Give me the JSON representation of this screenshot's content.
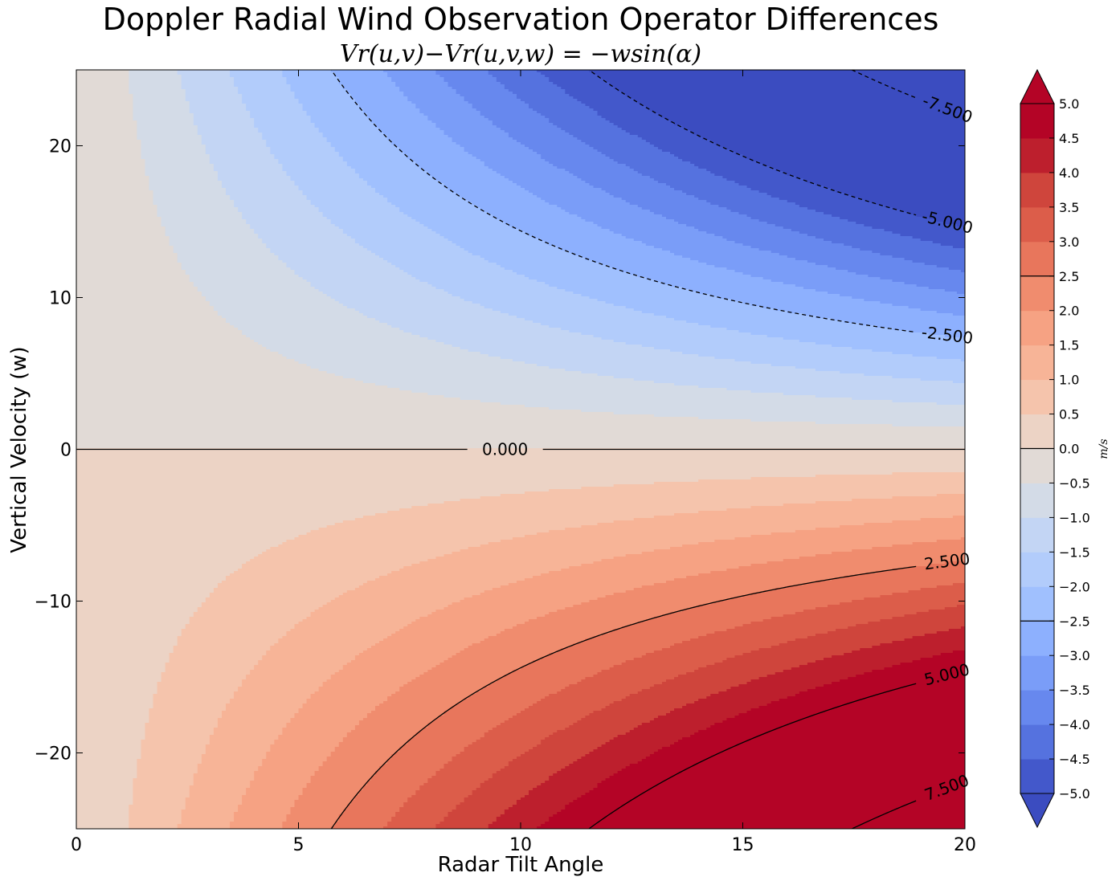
{
  "chart_data": {
    "type": "contour",
    "title": "Doppler Radial Wind Observation Operator Differences",
    "subtitle": "Vr(u,v)−Vr(u,v,w) = −wsin(α)",
    "xlabel": "Radar Tilt Angle",
    "ylabel": "Vertical Velocity (w)",
    "xlim": [
      0,
      20
    ],
    "ylim": [
      -25,
      25
    ],
    "xticks": [
      0,
      5,
      10,
      15,
      20
    ],
    "yticks": [
      -20,
      -10,
      0,
      10,
      20
    ],
    "ytick_labels": [
      "−20",
      "−10",
      "0",
      "10",
      "20"
    ],
    "function": "-w*sin(alpha)",
    "fill_levels": [
      -5.0,
      -4.5,
      -4.0,
      -3.5,
      -3.0,
      -2.5,
      -2.0,
      -1.5,
      -1.0,
      -0.5,
      0.0,
      0.5,
      1.0,
      1.5,
      2.0,
      2.5,
      3.0,
      3.5,
      4.0,
      4.5,
      5.0
    ],
    "fill_colors": [
      "#4358cb",
      "#5572df",
      "#6788ee",
      "#7a9df8",
      "#8db0fe",
      "#a0c0fe",
      "#b2ccfb",
      "#c3d5f4",
      "#d3dbe7",
      "#e1dad6",
      "#ecd3c5",
      "#f5c4ac",
      "#f7b497",
      "#f6a283",
      "#f08c6e",
      "#e8765c",
      "#dc5d4a",
      "#cf453c",
      "#bd1f2d",
      "#b40426"
    ],
    "under_color": "#3b4cc0",
    "over_color": "#b40426",
    "contour_lines": [
      {
        "value": -7.5,
        "label": "-7.500"
      },
      {
        "value": -5.0,
        "label": "-5.000"
      },
      {
        "value": -2.5,
        "label": "-2.500"
      },
      {
        "value": 0.0,
        "label": "0.000"
      },
      {
        "value": 2.5,
        "label": "2.500"
      },
      {
        "value": 5.0,
        "label": "5.000"
      },
      {
        "value": 7.5,
        "label": "7.500"
      }
    ],
    "colorbar": {
      "label": "m/s",
      "ticks": [
        5.0,
        4.5,
        4.0,
        3.5,
        3.0,
        2.5,
        2.0,
        1.5,
        1.0,
        0.5,
        0.0,
        -0.5,
        -1.0,
        -1.5,
        -2.0,
        -2.5,
        -3.0,
        -3.5,
        -4.0,
        -4.5,
        -5.0
      ],
      "tick_labels": [
        "5.0",
        "4.5",
        "4.0",
        "3.5",
        "3.0",
        "2.5",
        "2.0",
        "1.5",
        "1.0",
        "0.5",
        "0.0",
        "−0.5",
        "−1.0",
        "−1.5",
        "−2.0",
        "−2.5",
        "−3.0",
        "−3.5",
        "−4.0",
        "−4.5",
        "−5.0"
      ],
      "line_ticks": [
        2.5,
        0.0,
        -2.5
      ]
    }
  }
}
